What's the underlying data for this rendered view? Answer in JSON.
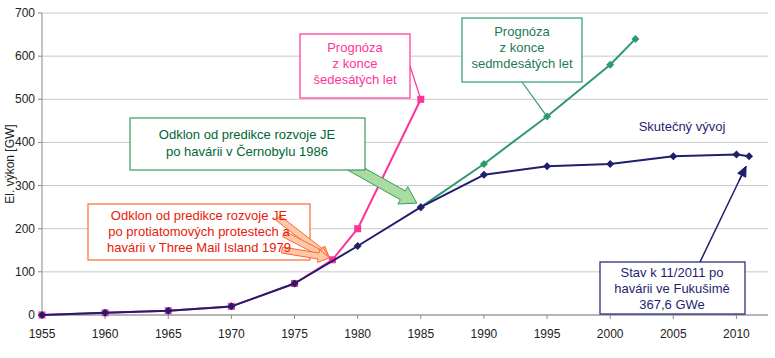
{
  "chart_data": {
    "type": "line",
    "y_label": "El. výkon [GW]",
    "xlim": [
      1955,
      2012.5
    ],
    "xticks": [
      1955,
      1960,
      1965,
      1970,
      1975,
      1980,
      1985,
      1990,
      1995,
      2000,
      2005,
      2010
    ],
    "ylim": [
      0,
      700
    ],
    "yticks": [
      0,
      100,
      200,
      300,
      400,
      500,
      600,
      700
    ],
    "grid": true,
    "series": [
      {
        "name": "Skutečný vývoj",
        "color": "#1f1f6e",
        "marker": "diamond",
        "x": [
          1955,
          1960,
          1965,
          1970,
          1975,
          1980,
          1985,
          1990,
          1995,
          2000,
          2005,
          2010,
          2011
        ],
        "values": [
          0,
          5,
          10,
          20,
          73,
          160,
          250,
          325,
          345,
          350,
          368,
          372,
          368
        ]
      },
      {
        "name": "Prognóza\nz konce\nšedesátých let",
        "color": "#ff3399",
        "marker": "square",
        "x": [
          1955,
          1960,
          1965,
          1970,
          1975,
          1978,
          1980,
          1985
        ],
        "values": [
          0,
          5,
          10,
          20,
          73,
          128,
          200,
          500
        ]
      },
      {
        "name": "Prognóza\nz konce\nsedmdesátých let",
        "color": "#2e9970",
        "marker": "diamond",
        "x": [
          1985,
          1990,
          1995,
          2000,
          2002
        ],
        "values": [
          250,
          350,
          460,
          580,
          640
        ]
      }
    ],
    "annotations": [
      {
        "text": "Odklon od predikce rozvoje JE\npo havárii v Černobylu 1986"
      },
      {
        "text": "Odklon od predikce rozvoje JE\npo protiatomových protestech a\nhavárii v Three Mail Island 1979"
      },
      {
        "text": "Stav k 11/2011 po\nhavárii ve Fukušimě\n367,6 GWe"
      }
    ]
  }
}
